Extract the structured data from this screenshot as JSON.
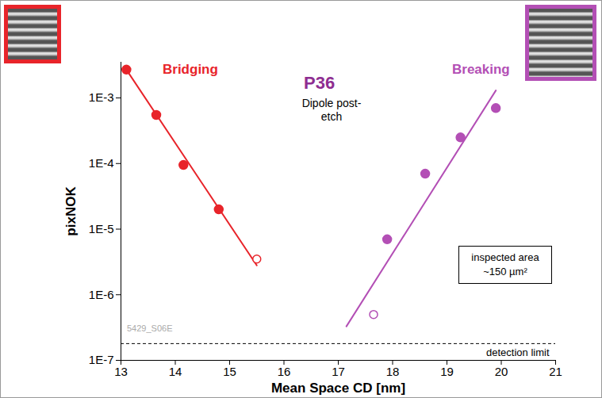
{
  "chart_data": {
    "type": "scatter",
    "title": "P36",
    "subtitle": "Dipole post-etch",
    "x_label": "Mean Space CD [nm]",
    "y_label": "pixNOK",
    "log": "y",
    "grid": false,
    "xlim": [
      13,
      21
    ],
    "ylim": [
      1e-07,
      0.0035
    ],
    "xticks": [
      13,
      14,
      15,
      16,
      17,
      18,
      19,
      20,
      21
    ],
    "yticks": [
      {
        "value": 1e-07,
        "label": "1E-7"
      },
      {
        "value": 1e-06,
        "label": "1E-6"
      },
      {
        "value": 1e-05,
        "label": "1E-5"
      },
      {
        "value": 0.0001,
        "label": "1E-4"
      },
      {
        "value": 0.001,
        "label": "1E-3"
      }
    ],
    "series": [
      {
        "name": "Bridging",
        "color": "#e8242a",
        "marker": "circle",
        "x": [
          13.1,
          13.65,
          14.15,
          14.8
        ],
        "values": [
          0.0027,
          0.00055,
          9.5e-05,
          2e-05
        ],
        "open_x": [
          15.5
        ],
        "open_values": [
          3.5e-06
        ],
        "fit_x": [
          13.1,
          15.5
        ],
        "fit_values": [
          0.0027,
          2.8e-06
        ]
      },
      {
        "name": "Breaking",
        "color": "#b34fb5",
        "marker": "circle",
        "x": [
          17.9,
          18.6,
          19.25,
          19.9
        ],
        "values": [
          7e-06,
          7e-05,
          0.00025,
          0.0007
        ],
        "open_x": [
          17.65
        ],
        "open_values": [
          5e-07
        ],
        "fit_x": [
          17.15,
          19.9
        ],
        "fit_values": [
          3.3e-07,
          0.0013
        ]
      }
    ],
    "annotations": [
      "inspected area ~150 µm²",
      "5429_S06E"
    ],
    "reference_lines": [
      {
        "value": 1.8e-07,
        "label": "detection limit",
        "line_style": "dashed"
      }
    ]
  }
}
